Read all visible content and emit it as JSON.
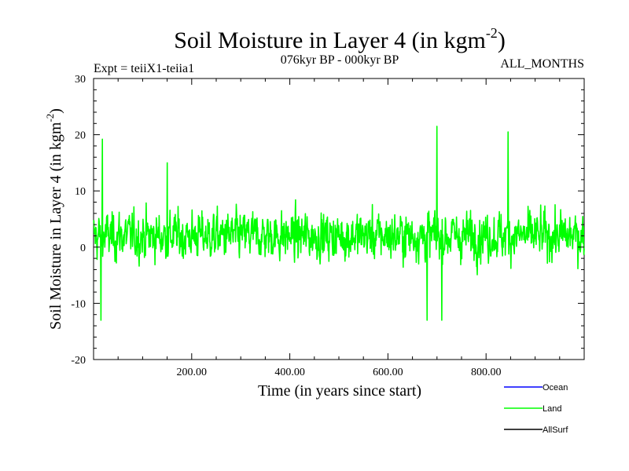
{
  "chart_data": {
    "type": "line",
    "title": "Soil Moisture in Layer 4 (in kgm",
    "title_sup": "-2",
    "title_end": ")",
    "subtitle_left": "Expt = teiiX1-teiia1",
    "subtitle_center": "076kyr BP - 000kyr BP",
    "subtitle_right": "ALL_MONTHS",
    "xlabel": "Time (in years since start)",
    "ylabel": "Soil Moisture in Layer 4 (in kgm",
    "ylabel_sup": "-2",
    "ylabel_end": ")",
    "xlim": [
      0,
      1000
    ],
    "ylim": [
      -20,
      30
    ],
    "x_ticks": [
      {
        "value": 200,
        "label": "200.00"
      },
      {
        "value": 400,
        "label": "400.00"
      },
      {
        "value": 600,
        "label": "600.00"
      },
      {
        "value": 800,
        "label": "800.00"
      }
    ],
    "y_ticks": [
      {
        "value": -20,
        "label": "-20"
      },
      {
        "value": -10,
        "label": "-10"
      },
      {
        "value": 0,
        "label": "0"
      },
      {
        "value": 10,
        "label": "10"
      },
      {
        "value": 20,
        "label": "20"
      },
      {
        "value": 30,
        "label": "30"
      }
    ],
    "series": [
      {
        "name": "Ocean",
        "color": "#0000ff",
        "visible": false
      },
      {
        "name": "Land",
        "color": "#00ff00",
        "visible": true,
        "approx_mean": 2,
        "approx_min": -13,
        "approx_max": 21.5,
        "peaks": [
          [
            18,
            19.2
          ],
          [
            150,
            15
          ],
          [
            700,
            21.5
          ],
          [
            845,
            20.5
          ]
        ],
        "troughs": [
          [
            15,
            -13
          ],
          [
            680,
            -13
          ],
          [
            710,
            -13
          ]
        ]
      },
      {
        "name": "AllSurf",
        "color": "#000000",
        "visible": false
      }
    ],
    "grid": false,
    "legend_position": "bottom-right"
  }
}
